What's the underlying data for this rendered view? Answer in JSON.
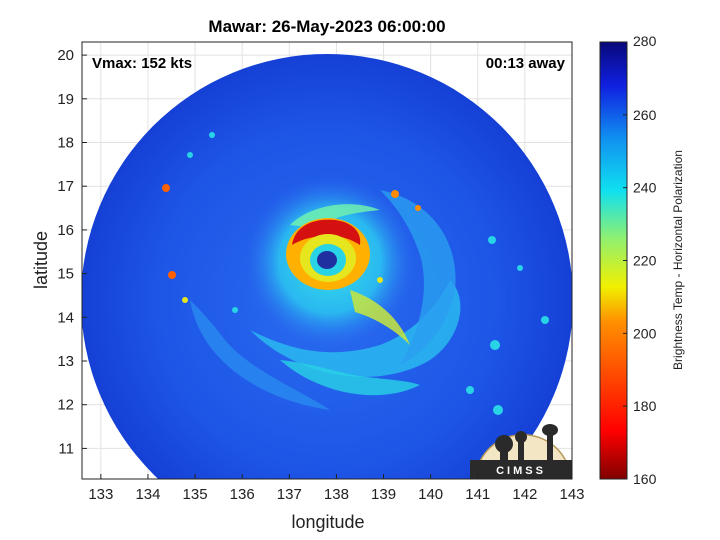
{
  "title": "Mawar: 26-May-2023 06:00:00",
  "vmax_text": "Vmax: 152 kts",
  "away_text": "00:13 away",
  "logo_text": "CIMSS",
  "colors": {
    "background_disc_base": "#1d55e6",
    "eye": "#1f2fa0",
    "eyewall_hot": "#d41010",
    "eyewall_warm": "#ff9b00",
    "band_cyan": "#28d3e6",
    "band_yellow": "#e6e61e"
  },
  "chart_data": {
    "type": "heatmap",
    "title": "Mawar: 26-May-2023 06:00:00",
    "xlabel": "longitude",
    "ylabel": "latitude",
    "xlim": [
      132.6,
      143
    ],
    "ylim": [
      10.3,
      20.3
    ],
    "x_ticks": [
      133,
      134,
      135,
      136,
      137,
      138,
      139,
      140,
      141,
      142,
      143
    ],
    "y_ticks": [
      11,
      12,
      13,
      14,
      15,
      16,
      17,
      18,
      19,
      20
    ],
    "grid": true,
    "storm_center": {
      "lon": 137.8,
      "lat": 15.3
    },
    "eye_radius_deg": 0.25,
    "colorbar": {
      "label": "Brightness Temp - Horizontal Polarization",
      "min": 160,
      "max": 280,
      "ticks": [
        160,
        180,
        200,
        220,
        240,
        260,
        280
      ],
      "colormap": [
        "#800000",
        "#ff0000",
        "#ff8000",
        "#ffff00",
        "#80ff80",
        "#00ffff",
        "#0080ff",
        "#0000ff",
        "#00008f"
      ]
    }
  }
}
